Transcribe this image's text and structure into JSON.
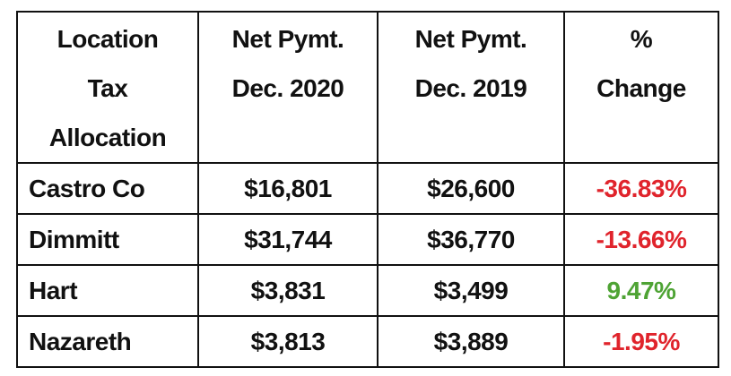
{
  "table": {
    "header": [
      [
        "Location",
        "Tax",
        "Allocation"
      ],
      [
        "Net Pymt.",
        "Dec. 2020"
      ],
      [
        "Net Pymt.",
        "Dec. 2019"
      ],
      [
        "%",
        "Change"
      ]
    ],
    "rows": [
      [
        "Castro Co",
        "$16,801",
        "$26,600",
        "-36.83%"
      ],
      [
        "Dimmitt",
        "$31,744",
        "$36,770",
        "-13.66%"
      ],
      [
        "Hart",
        "$3,831",
        "$3,499",
        "9.47%"
      ],
      [
        "Nazareth",
        "$3,813",
        "$3,889",
        "-1.95%"
      ]
    ],
    "negative_color": "#e0242c",
    "positive_color": "#4ea334"
  }
}
